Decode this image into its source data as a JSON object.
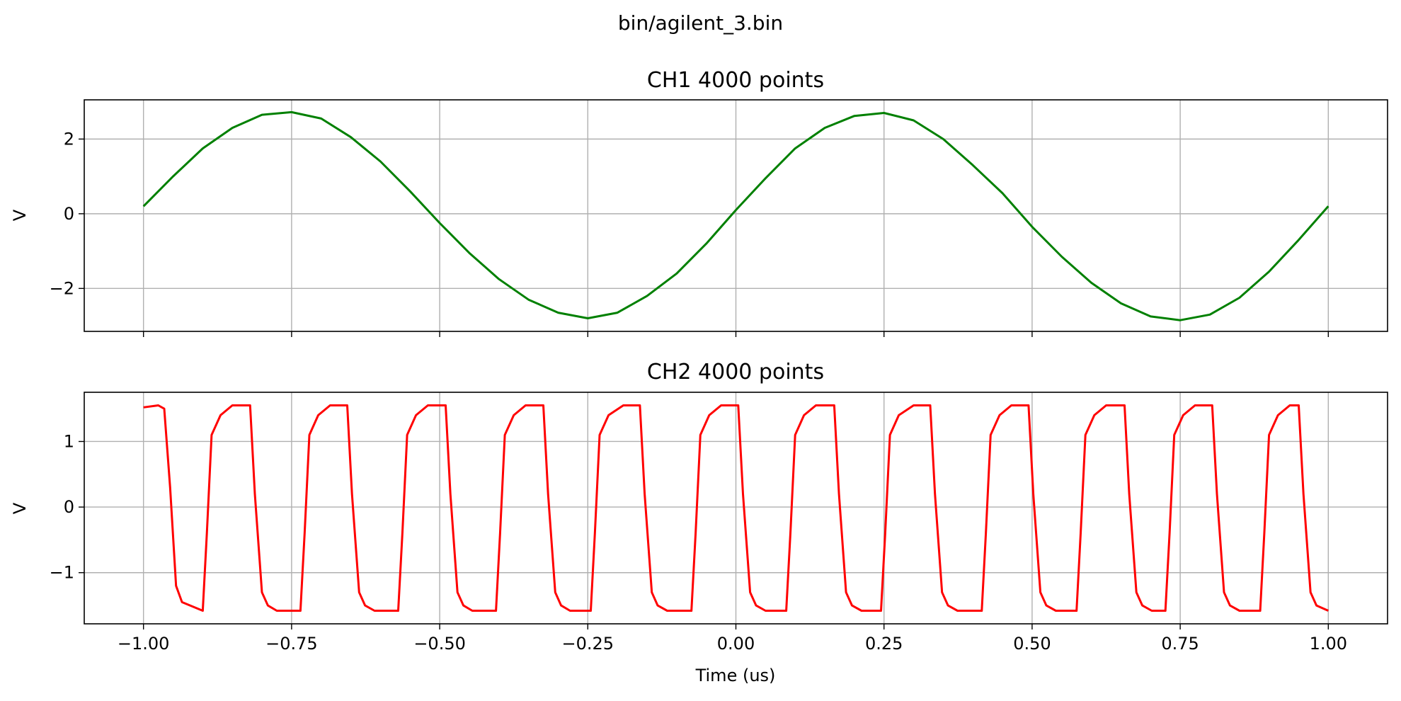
{
  "figure": {
    "suptitle": "bin/agilent_3.bin",
    "xlabel": "Time (us)"
  },
  "chart_data": [
    {
      "type": "line",
      "title": "CH1  4000 points",
      "xlabel": "",
      "ylabel": "V",
      "xlim": [
        -1.1,
        1.1
      ],
      "ylim": [
        -3.15,
        3.05
      ],
      "xticks": [
        -1.0,
        -0.75,
        -0.5,
        -0.25,
        0.0,
        0.25,
        0.5,
        0.75,
        1.0
      ],
      "xtick_labels": [],
      "yticks": [
        -2,
        0,
        2
      ],
      "ytick_labels": [
        "−2",
        "0",
        "2"
      ],
      "grid": true,
      "series": [
        {
          "color": "#008000",
          "x": [
            -1.0,
            -0.95,
            -0.9,
            -0.85,
            -0.8,
            -0.75,
            -0.7,
            -0.65,
            -0.6,
            -0.55,
            -0.5,
            -0.45,
            -0.4,
            -0.35,
            -0.3,
            -0.25,
            -0.2,
            -0.15,
            -0.1,
            -0.05,
            0.0,
            0.05,
            0.1,
            0.15,
            0.2,
            0.25,
            0.3,
            0.35,
            0.4,
            0.45,
            0.5,
            0.55,
            0.6,
            0.65,
            0.7,
            0.75,
            0.8,
            0.85,
            0.9,
            0.95,
            1.0
          ],
          "y": [
            0.2,
            1.0,
            1.75,
            2.3,
            2.65,
            2.72,
            2.55,
            2.05,
            1.4,
            0.6,
            -0.25,
            -1.05,
            -1.75,
            -2.3,
            -2.65,
            -2.8,
            -2.65,
            -2.2,
            -1.6,
            -0.8,
            0.1,
            0.95,
            1.75,
            2.3,
            2.62,
            2.7,
            2.5,
            2.0,
            1.3,
            0.55,
            -0.35,
            -1.15,
            -1.85,
            -2.4,
            -2.75,
            -2.85,
            -2.7,
            -2.25,
            -1.55,
            -0.7,
            0.2
          ]
        }
      ]
    },
    {
      "type": "line",
      "title": "CH2  4000 points",
      "xlabel": "Time (us)",
      "ylabel": "V",
      "xlim": [
        -1.1,
        1.1
      ],
      "ylim": [
        -1.78,
        1.75
      ],
      "xticks": [
        -1.0,
        -0.75,
        -0.5,
        -0.25,
        0.0,
        0.25,
        0.5,
        0.75,
        1.0
      ],
      "xtick_labels": [
        "−1.00",
        "−0.75",
        "−0.50",
        "−0.25",
        "0.00",
        "0.25",
        "0.50",
        "0.75",
        "1.00"
      ],
      "yticks": [
        -1,
        0,
        1
      ],
      "ytick_labels": [
        "−1",
        "0",
        "1"
      ],
      "grid": true,
      "series": [
        {
          "color": "#ff0000",
          "x": [
            -1.0,
            -0.975,
            -0.965,
            -0.955,
            -0.945,
            -0.935,
            -0.9,
            -0.893,
            -0.885,
            -0.87,
            -0.85,
            -0.82,
            -0.812,
            -0.8,
            -0.79,
            -0.775,
            -0.735,
            -0.728,
            -0.72,
            -0.705,
            -0.685,
            -0.656,
            -0.648,
            -0.636,
            -0.626,
            -0.61,
            -0.57,
            -0.563,
            -0.555,
            -0.54,
            -0.52,
            -0.49,
            -0.482,
            -0.47,
            -0.46,
            -0.445,
            -0.405,
            -0.398,
            -0.39,
            -0.375,
            -0.355,
            -0.325,
            -0.317,
            -0.305,
            -0.295,
            -0.28,
            -0.245,
            -0.238,
            -0.23,
            -0.215,
            -0.19,
            -0.162,
            -0.154,
            -0.142,
            -0.132,
            -0.116,
            -0.075,
            -0.068,
            -0.06,
            -0.045,
            -0.025,
            0.004,
            0.012,
            0.024,
            0.034,
            0.05,
            0.085,
            0.092,
            0.1,
            0.115,
            0.135,
            0.166,
            0.174,
            0.186,
            0.196,
            0.212,
            0.245,
            0.252,
            0.26,
            0.275,
            0.3,
            0.328,
            0.336,
            0.348,
            0.358,
            0.374,
            0.415,
            0.422,
            0.43,
            0.445,
            0.465,
            0.494,
            0.502,
            0.514,
            0.524,
            0.54,
            0.575,
            0.582,
            0.59,
            0.605,
            0.625,
            0.656,
            0.664,
            0.676,
            0.686,
            0.702,
            0.725,
            0.732,
            0.74,
            0.755,
            0.775,
            0.804,
            0.812,
            0.824,
            0.834,
            0.85,
            0.885,
            0.892,
            0.9,
            0.915,
            0.935,
            0.95,
            0.958,
            0.97,
            0.98,
            1.0
          ],
          "y": [
            1.52,
            1.55,
            1.5,
            0.3,
            -1.2,
            -1.45,
            -1.58,
            -0.4,
            1.1,
            1.4,
            1.55,
            1.55,
            0.2,
            -1.3,
            -1.5,
            -1.58,
            -1.58,
            -0.4,
            1.1,
            1.4,
            1.55,
            1.55,
            0.2,
            -1.3,
            -1.5,
            -1.58,
            -1.58,
            -0.4,
            1.1,
            1.4,
            1.55,
            1.55,
            0.2,
            -1.3,
            -1.5,
            -1.58,
            -1.58,
            -0.4,
            1.1,
            1.4,
            1.55,
            1.55,
            0.2,
            -1.3,
            -1.5,
            -1.58,
            -1.58,
            -0.4,
            1.1,
            1.4,
            1.55,
            1.55,
            0.2,
            -1.3,
            -1.5,
            -1.58,
            -1.58,
            -0.4,
            1.1,
            1.4,
            1.55,
            1.55,
            0.2,
            -1.3,
            -1.5,
            -1.58,
            -1.58,
            -0.4,
            1.1,
            1.4,
            1.55,
            1.55,
            0.2,
            -1.3,
            -1.5,
            -1.58,
            -1.58,
            -0.4,
            1.1,
            1.4,
            1.55,
            1.55,
            0.2,
            -1.3,
            -1.5,
            -1.58,
            -1.58,
            -0.4,
            1.1,
            1.4,
            1.55,
            1.55,
            0.2,
            -1.3,
            -1.5,
            -1.58,
            -1.58,
            -0.4,
            1.1,
            1.4,
            1.55,
            1.55,
            0.2,
            -1.3,
            -1.5,
            -1.58,
            -1.58,
            -0.4,
            1.1,
            1.4,
            1.55,
            1.55,
            0.2,
            -1.3,
            -1.5,
            -1.58,
            -1.58,
            -0.4,
            1.1,
            1.4,
            1.55,
            1.55,
            0.2,
            -1.3,
            -1.5,
            -1.58
          ]
        }
      ]
    }
  ]
}
